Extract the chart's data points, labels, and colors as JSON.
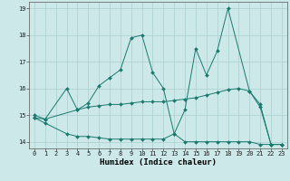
{
  "background_color": "#cce8e8",
  "line_color": "#1a7a6e",
  "grid_color": "#aacfcf",
  "xlabel": "Humidex (Indice chaleur)",
  "xlim": [
    -0.5,
    23.5
  ],
  "ylim": [
    13.75,
    19.25
  ],
  "yticks": [
    14,
    15,
    16,
    17,
    18,
    19
  ],
  "xticks": [
    0,
    1,
    2,
    3,
    4,
    5,
    6,
    7,
    8,
    9,
    10,
    11,
    12,
    13,
    14,
    15,
    16,
    17,
    18,
    19,
    20,
    21,
    22,
    23
  ],
  "line1_x": [
    0,
    1,
    3,
    4,
    5,
    6,
    7,
    8,
    9,
    10,
    11,
    12,
    13,
    14,
    15,
    16,
    17,
    18,
    19,
    20,
    21,
    22,
    23
  ],
  "line1_y": [
    14.9,
    14.7,
    14.3,
    14.2,
    14.2,
    14.15,
    14.1,
    14.1,
    14.1,
    14.1,
    14.1,
    14.1,
    14.3,
    14.0,
    14.0,
    14.0,
    14.0,
    14.0,
    14.0,
    14.0,
    13.9,
    13.9,
    13.9
  ],
  "line2_x": [
    0,
    1,
    4,
    5,
    6,
    7,
    8,
    9,
    10,
    11,
    12,
    13,
    14,
    15,
    16,
    17,
    18,
    19,
    20,
    21,
    22,
    23
  ],
  "line2_y": [
    15.0,
    14.85,
    15.2,
    15.3,
    15.35,
    15.4,
    15.4,
    15.45,
    15.5,
    15.5,
    15.5,
    15.55,
    15.6,
    15.65,
    15.75,
    15.85,
    15.95,
    16.0,
    15.9,
    15.4,
    13.9,
    13.9
  ],
  "line3_x": [
    0,
    1,
    3,
    4,
    5,
    6,
    7,
    8,
    9,
    10,
    11,
    12,
    13,
    14,
    15,
    16,
    17,
    18,
    20,
    21,
    22,
    23
  ],
  "line3_y": [
    14.9,
    14.85,
    16.0,
    15.2,
    15.45,
    16.1,
    16.4,
    16.7,
    17.9,
    18.0,
    16.6,
    16.0,
    14.3,
    15.2,
    17.5,
    16.5,
    17.4,
    19.0,
    15.9,
    15.3,
    13.9,
    13.9
  ]
}
